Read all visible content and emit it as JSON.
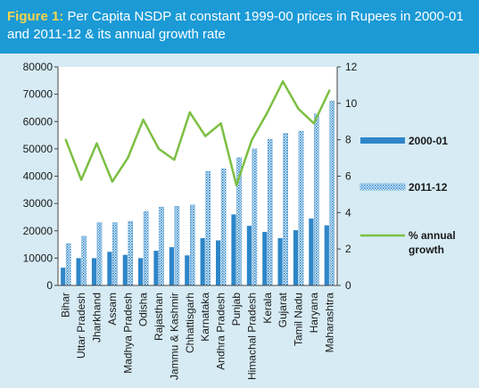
{
  "title": {
    "label": "Figure 1:",
    "text": " Per Capita NSDP at constant 1999-00 prices in Rupees in 2000-01 and 2011-12 & its annual growth rate"
  },
  "chart_data": {
    "type": "bar",
    "categories": [
      "Bihar",
      "Uttar Pradesh",
      "Jharkhand",
      "Assam",
      "Madhya Pradesh",
      "Odisha",
      "Rajasthan",
      "Jammu & Kashmir",
      "Chhattisgarh",
      "Karnataka",
      "Andhra Pradesh",
      "Punjab",
      "Himachal Pradesh",
      "Kerala",
      "Gujarat",
      "Tamil Nadu",
      "Haryana",
      "Maharashtra"
    ],
    "series": [
      {
        "name": "2000-01",
        "kind": "bar",
        "axis": "left",
        "color": "#2e86c8",
        "values": [
          6500,
          10000,
          10000,
          12300,
          11200,
          10000,
          12700,
          14000,
          11000,
          17300,
          16500,
          26000,
          21800,
          19600,
          17300,
          20200,
          24500,
          22000
        ]
      },
      {
        "name": "2011-12",
        "kind": "bar",
        "axis": "left",
        "color": "#2e86c8",
        "values": [
          15300,
          18000,
          23000,
          23000,
          23500,
          27000,
          28700,
          29000,
          29500,
          41700,
          42700,
          46800,
          50000,
          53500,
          55700,
          56500,
          62800,
          67500
        ]
      },
      {
        "name": "% annual growth",
        "kind": "line",
        "axis": "right",
        "color": "#7cbf43",
        "values": [
          8.0,
          5.8,
          7.8,
          5.7,
          7.0,
          9.1,
          7.5,
          6.9,
          9.5,
          8.2,
          8.9,
          5.5,
          8.0,
          9.5,
          11.2,
          9.7,
          8.9,
          10.7
        ]
      }
    ],
    "ylim_left": [
      0,
      80000
    ],
    "yticks_left": [
      "0",
      "10000",
      "20000",
      "30000",
      "40000",
      "50000",
      "60000",
      "70000",
      "80000"
    ],
    "ylim_right": [
      0,
      12
    ],
    "yticks_right": [
      "0",
      "2",
      "4",
      "6",
      "8",
      "10",
      "12"
    ],
    "grid": false,
    "legend": {
      "position": "right",
      "entries": [
        "2000-01",
        "2011-12",
        "% annual",
        "growth"
      ]
    }
  }
}
